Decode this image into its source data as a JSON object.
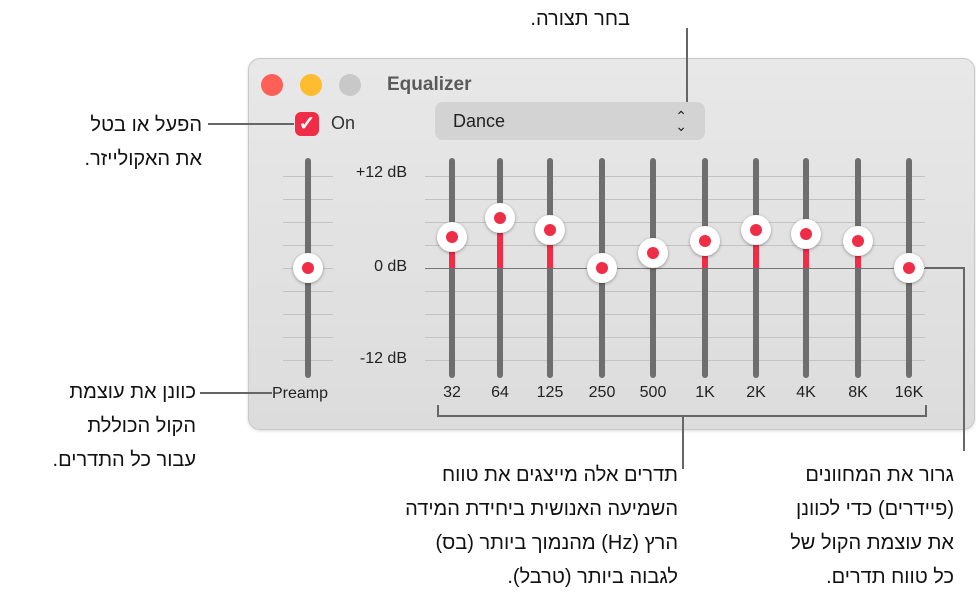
{
  "window": {
    "title": "Equalizer",
    "on_label": "On",
    "enabled": true,
    "preset": "Dance"
  },
  "colors": {
    "accent": "#f02d46",
    "close": "#fe5f57",
    "minimize": "#febc2e",
    "zoom": "#c8c8c8"
  },
  "scale": {
    "top": "+12 dB",
    "mid": "0 dB",
    "bottom": "-12 dB",
    "min_db": -12,
    "max_db": 12
  },
  "preamp": {
    "label": "Preamp",
    "value_db": 0
  },
  "bands": [
    {
      "label": "32",
      "value_db": 4
    },
    {
      "label": "64",
      "value_db": 6.5
    },
    {
      "label": "125",
      "value_db": 5
    },
    {
      "label": "250",
      "value_db": 0
    },
    {
      "label": "500",
      "value_db": 2
    },
    {
      "label": "1K",
      "value_db": 3.5
    },
    {
      "label": "2K",
      "value_db": 5
    },
    {
      "label": "4K",
      "value_db": 4.5
    },
    {
      "label": "8K",
      "value_db": 3.5
    },
    {
      "label": "16K",
      "value_db": 0
    }
  ],
  "annotations": {
    "preset": [
      "בחר תצורה."
    ],
    "toggle": [
      "הפעל או בטל",
      "את האקולייזר."
    ],
    "preamp": [
      "כוונן את עוצמת",
      "הקול הכוללת",
      "עבור כל התדרים."
    ],
    "bands": [
      "תדרים אלה מייצגים את טווח",
      "השמיעה האנושית ביחידת המידה",
      "הרץ (Hz) מהנמוך ביותר (בס)",
      "לגבוה ביותר (טרבל)."
    ],
    "sliders": [
      "גרור את המחוונים",
      "(פיידרים) כדי לכוונן",
      "את עוצמת הקול של",
      "כל טווח תדרים."
    ]
  }
}
